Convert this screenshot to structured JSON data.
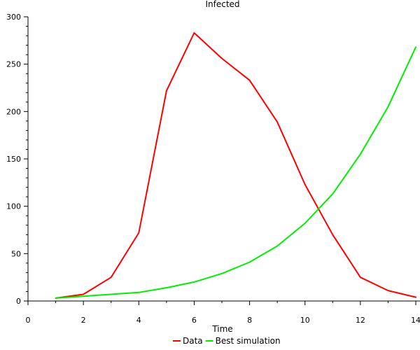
{
  "chart_data": {
    "type": "line",
    "title": "Infected",
    "xlabel": "Time",
    "ylabel": "",
    "xlim": [
      0,
      14
    ],
    "ylim": [
      0,
      300
    ],
    "xticks": [
      0,
      2,
      4,
      6,
      8,
      10,
      12,
      14
    ],
    "yticks": [
      0,
      50,
      100,
      150,
      200,
      250,
      300
    ],
    "x_minor_step": 1,
    "y_minor_step": 10,
    "grid": false,
    "legend_position": "bottom",
    "series": [
      {
        "name": "Data",
        "color": "#ff0000",
        "x": [
          1,
          2,
          3,
          4,
          5,
          6,
          7,
          8,
          9,
          10,
          11,
          12,
          13,
          14
        ],
        "y": [
          3,
          7,
          25,
          72,
          222,
          283,
          256,
          233,
          189,
          123,
          70,
          25,
          11,
          4
        ]
      },
      {
        "name": "Best simulation",
        "color": "#00ee00",
        "x": [
          1,
          2,
          3,
          4,
          5,
          6,
          7,
          8,
          9,
          10,
          11,
          12,
          13,
          14
        ],
        "y": [
          3,
          5,
          7,
          9,
          14,
          20,
          29,
          41,
          58,
          82,
          113,
          155,
          205,
          268
        ]
      }
    ]
  }
}
